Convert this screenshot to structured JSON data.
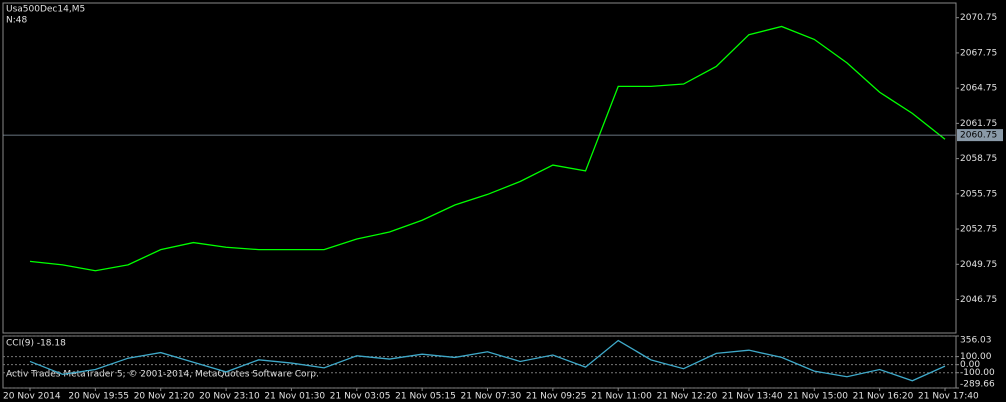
{
  "chart_data": [
    {
      "type": "line",
      "title": "Usa500Dec14,M5",
      "subtitle": "N:48",
      "categories": [
        "20 Nov 2014",
        null,
        "20 Nov 19:55",
        null,
        "20 Nov 21:20",
        null,
        "20 Nov 23:10",
        null,
        "21 Nov 01:30",
        null,
        "21 Nov 03:05",
        null,
        "21 Nov 05:15",
        null,
        "21 Nov 07:30",
        null,
        "21 Nov 09:25",
        null,
        "21 Nov 11:00",
        null,
        "21 Nov 12:20",
        null,
        "21 Nov 13:40",
        null,
        "21 Nov 15:00",
        null,
        "21 Nov 16:20",
        null,
        "21 Nov 17:40"
      ],
      "values": [
        2050.0,
        2049.7,
        2049.2,
        2049.7,
        2051.0,
        2051.6,
        2051.2,
        2051.0,
        2051.0,
        2051.0,
        2051.9,
        2052.5,
        2053.5,
        2054.8,
        2055.7,
        2056.8,
        2058.2,
        2057.7,
        2064.9,
        2064.9,
        2065.1,
        2066.6,
        2069.3,
        2070.0,
        2068.9,
        2066.9,
        2064.4,
        2062.6,
        2060.4
      ],
      "color": "#00ff00",
      "ylim": [
        2043.9,
        2072.0
      ],
      "yticks": [
        2046.75,
        2049.75,
        2052.75,
        2055.75,
        2058.75,
        2061.75,
        2064.75,
        2067.75,
        2070.75
      ],
      "last_price": 2060.75
    },
    {
      "type": "line",
      "title": "CCI(9) -18.18",
      "values": [
        40,
        -120,
        -60,
        80,
        150,
        30,
        -90,
        60,
        20,
        -40,
        110,
        70,
        130,
        90,
        160,
        40,
        120,
        -30,
        300,
        60,
        -50,
        140,
        180,
        90,
        -80,
        -150,
        -60,
        -200,
        -18.18
      ],
      "color": "#3fa9c9",
      "ylim": [
        -289.66,
        356.03
      ],
      "yticks": [
        -289.66,
        {
          "value": -100,
          "label": "-100.00"
        },
        {
          "value": 0,
          "label": "0.00"
        },
        {
          "value": 100,
          "label": "100.00"
        },
        356.03
      ]
    }
  ],
  "footer": "Activ Trades MetaTrader 5, © 2001-2014, MetaQuotes Software Corp."
}
